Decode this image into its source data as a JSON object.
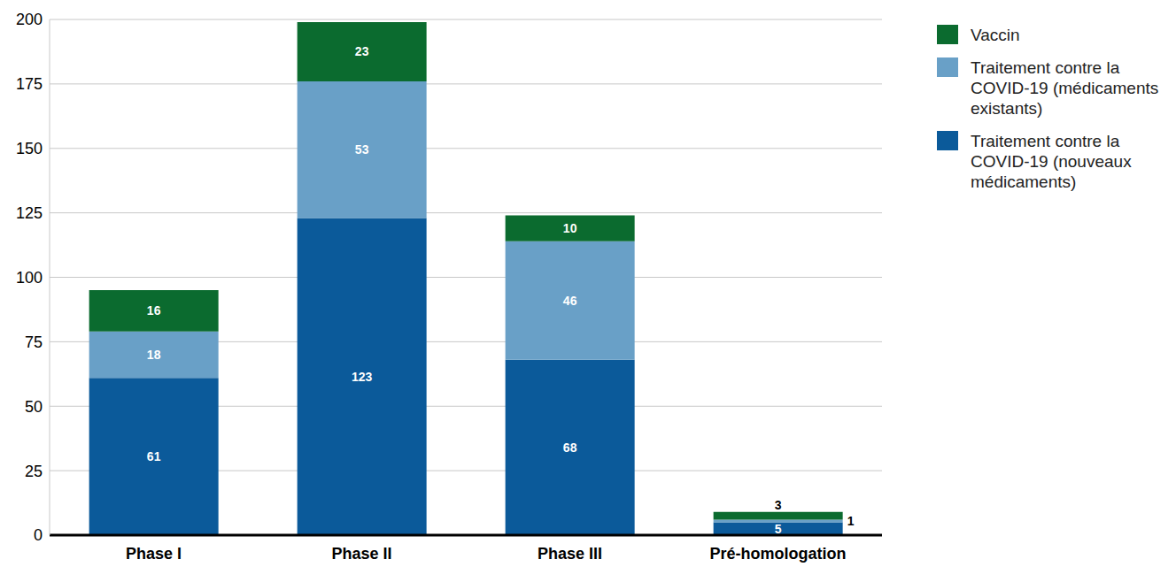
{
  "chart_data": {
    "type": "bar",
    "stacked": true,
    "data_labels": true,
    "grid": true,
    "legend": "upper right",
    "categories": [
      "Phase I",
      "Phase II",
      "Phase III",
      "Pré-homologation"
    ],
    "series": [
      {
        "name": "Traitement contre la COVID-19 (nouveaux médicaments)",
        "color": "#0b5a9a",
        "values": [
          61,
          123,
          68,
          5
        ]
      },
      {
        "name": "Traitement contre la COVID-19 (médicaments existants)",
        "color": "#69a0c7",
        "values": [
          18,
          53,
          46,
          1
        ]
      },
      {
        "name": "Vaccin",
        "color": "#0b6b2f",
        "values": [
          16,
          23,
          10,
          3
        ]
      }
    ],
    "ylim": [
      0,
      200
    ],
    "yticks": [
      0,
      25,
      50,
      75,
      100,
      125,
      150,
      175,
      200
    ]
  }
}
